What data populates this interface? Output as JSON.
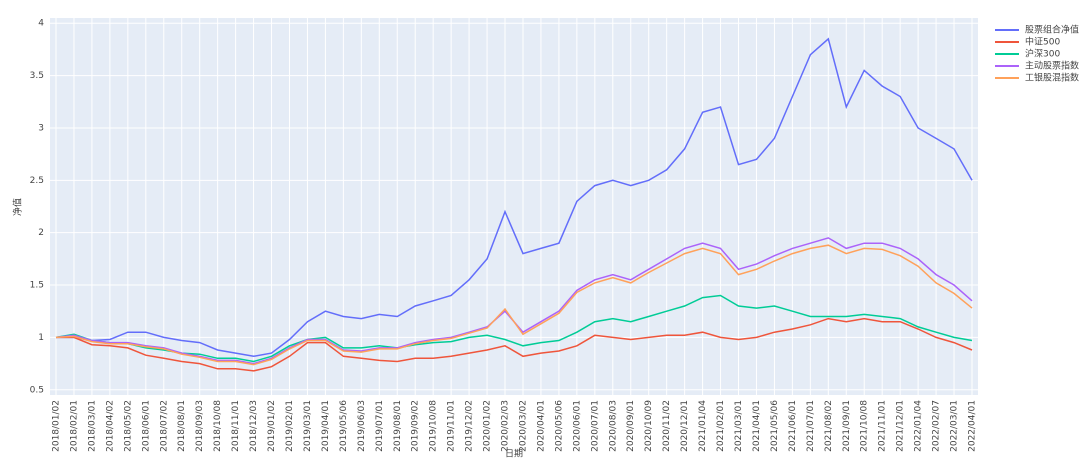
{
  "chart_data": {
    "type": "line",
    "x_label": "日期",
    "y_label": "净值",
    "categories": [
      "2018/01/02",
      "2018/02/01",
      "2018/03/01",
      "2018/04/02",
      "2018/05/02",
      "2018/06/01",
      "2018/07/02",
      "2018/08/01",
      "2018/09/03",
      "2018/10/08",
      "2018/11/01",
      "2018/12/03",
      "2019/01/02",
      "2019/02/01",
      "2019/03/01",
      "2019/04/01",
      "2019/05/06",
      "2019/06/03",
      "2019/07/01",
      "2019/08/01",
      "2019/09/02",
      "2019/10/08",
      "2019/11/01",
      "2019/12/02",
      "2020/01/02",
      "2020/02/03",
      "2020/03/02",
      "2020/04/01",
      "2020/05/06",
      "2020/06/01",
      "2020/07/01",
      "2020/08/03",
      "2020/09/01",
      "2020/10/09",
      "2020/11/02",
      "2020/12/01",
      "2021/01/04",
      "2021/02/01",
      "2021/03/01",
      "2021/04/01",
      "2021/05/06",
      "2021/06/01",
      "2021/07/01",
      "2021/08/02",
      "2021/09/01",
      "2021/10/08",
      "2021/11/01",
      "2021/12/01",
      "2022/01/04",
      "2022/02/07",
      "2022/03/01",
      "2022/04/01"
    ],
    "series": [
      {
        "name": "股票组合净值",
        "color": "#636efa",
        "values": [
          1.0,
          1.0,
          0.97,
          0.98,
          1.05,
          1.05,
          1.0,
          0.97,
          0.95,
          0.88,
          0.85,
          0.82,
          0.85,
          0.98,
          1.15,
          1.25,
          1.2,
          1.18,
          1.22,
          1.2,
          1.3,
          1.35,
          1.4,
          1.55,
          1.75,
          2.2,
          1.8,
          1.85,
          1.9,
          2.3,
          2.45,
          2.5,
          2.45,
          2.5,
          2.6,
          2.8,
          3.15,
          3.2,
          2.65,
          2.7,
          2.9,
          3.3,
          3.7,
          3.85,
          3.2,
          3.55,
          3.4,
          3.3,
          3.0,
          2.9,
          2.8,
          2.5
        ]
      },
      {
        "name": "中证500",
        "color": "#EF553B",
        "values": [
          1.0,
          1.0,
          0.93,
          0.92,
          0.9,
          0.83,
          0.8,
          0.77,
          0.75,
          0.7,
          0.7,
          0.68,
          0.72,
          0.82,
          0.95,
          0.95,
          0.82,
          0.8,
          0.78,
          0.77,
          0.8,
          0.8,
          0.82,
          0.85,
          0.88,
          0.92,
          0.82,
          0.85,
          0.87,
          0.92,
          1.02,
          1.0,
          0.98,
          1.0,
          1.02,
          1.02,
          1.05,
          1.0,
          0.98,
          1.0,
          1.05,
          1.08,
          1.12,
          1.18,
          1.15,
          1.18,
          1.15,
          1.15,
          1.08,
          1.0,
          0.95,
          0.88
        ]
      },
      {
        "name": "沪深300",
        "color": "#00cc96",
        "values": [
          1.0,
          1.03,
          0.97,
          0.95,
          0.94,
          0.9,
          0.88,
          0.85,
          0.84,
          0.8,
          0.8,
          0.77,
          0.82,
          0.92,
          0.98,
          1.0,
          0.9,
          0.9,
          0.92,
          0.9,
          0.93,
          0.95,
          0.96,
          1.0,
          1.02,
          0.98,
          0.92,
          0.95,
          0.97,
          1.05,
          1.15,
          1.18,
          1.15,
          1.2,
          1.25,
          1.3,
          1.38,
          1.4,
          1.3,
          1.28,
          1.3,
          1.25,
          1.2,
          1.2,
          1.2,
          1.22,
          1.2,
          1.18,
          1.1,
          1.05,
          1.0,
          0.97
        ]
      },
      {
        "name": "主动股票指数",
        "color": "#ab63fa",
        "values": [
          1.0,
          1.02,
          0.97,
          0.95,
          0.95,
          0.92,
          0.9,
          0.85,
          0.82,
          0.78,
          0.78,
          0.75,
          0.8,
          0.9,
          0.98,
          0.98,
          0.88,
          0.87,
          0.9,
          0.9,
          0.95,
          0.98,
          1.0,
          1.05,
          1.1,
          1.25,
          1.05,
          1.15,
          1.25,
          1.45,
          1.55,
          1.6,
          1.55,
          1.65,
          1.75,
          1.85,
          1.9,
          1.85,
          1.65,
          1.7,
          1.78,
          1.85,
          1.9,
          1.95,
          1.85,
          1.9,
          1.9,
          1.85,
          1.75,
          1.6,
          1.5,
          1.35
        ]
      },
      {
        "name": "工银股混指数",
        "color": "#FFA15A",
        "values": [
          1.0,
          1.01,
          0.96,
          0.94,
          0.94,
          0.91,
          0.89,
          0.84,
          0.81,
          0.77,
          0.77,
          0.74,
          0.79,
          0.89,
          0.97,
          0.97,
          0.87,
          0.86,
          0.89,
          0.89,
          0.94,
          0.97,
          0.99,
          1.04,
          1.09,
          1.27,
          1.03,
          1.13,
          1.23,
          1.43,
          1.52,
          1.57,
          1.52,
          1.62,
          1.71,
          1.8,
          1.85,
          1.8,
          1.6,
          1.65,
          1.73,
          1.8,
          1.85,
          1.88,
          1.8,
          1.85,
          1.84,
          1.78,
          1.68,
          1.52,
          1.42,
          1.28
        ]
      }
    ],
    "ylim": [
      0.45,
      4.05
    ],
    "yticks": [
      0.5,
      1,
      1.5,
      2,
      2.5,
      3,
      3.5,
      4
    ],
    "grid": true,
    "legend": "top-right"
  }
}
